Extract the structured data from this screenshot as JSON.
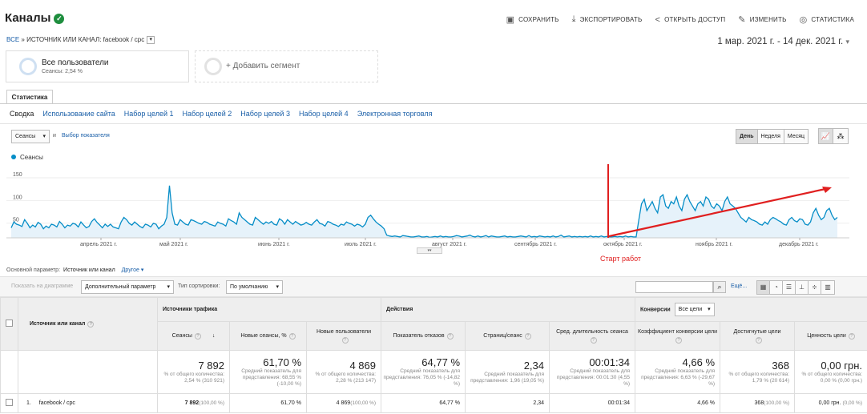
{
  "header": {
    "title": "Каналы",
    "actions": [
      "СОХРАНИТЬ",
      "ЭКСПОРТИРОВАТЬ",
      "ОТКРЫТЬ ДОСТУП",
      "ИЗМЕНИТЬ",
      "СТАТИСТИКА"
    ]
  },
  "breadcrumb": {
    "all": "ВСЕ",
    "sep": "»",
    "label": "ИСТОЧНИК ИЛИ КАНАЛ:",
    "value": "facebook / cpc"
  },
  "date_range": "1 мар. 2021 г. - 14 дек. 2021 г.",
  "segments": {
    "seg1_title": "Все пользователи",
    "seg1_sub": "Сеансы: 2,54 %",
    "seg2_title": "+ Добавить сегмент"
  },
  "tabs": {
    "main": "Статистика",
    "sub": [
      "Сводка",
      "Использование сайта",
      "Набор целей 1",
      "Набор целей 2",
      "Набор целей 3",
      "Набор целей 4",
      "Электронная торговля"
    ]
  },
  "chart_controls": {
    "metric": "Сеансы",
    "and": "и",
    "select_metric": "Выбор показателя",
    "periods": [
      "День",
      "Неделя",
      "Месяц"
    ]
  },
  "chart_data": {
    "type": "area",
    "series": [
      {
        "name": "Сеансы",
        "values": [
          22,
          35,
          30,
          28,
          25,
          40,
          32,
          22,
          28,
          24,
          34,
          30,
          20,
          26,
          22,
          30,
          28,
          24,
          36,
          30,
          22,
          28,
          26,
          32,
          30,
          24,
          35,
          28,
          22,
          25,
          36,
          42,
          34,
          28,
          22,
          30,
          25,
          30,
          24,
          22,
          20,
          35,
          45,
          40,
          32,
          28,
          35,
          30,
          25,
          22,
          30,
          28,
          24,
          32,
          30,
          20,
          26,
          30,
          45,
          115,
          55,
          30,
          28,
          40,
          35,
          30,
          28,
          40,
          38,
          35,
          32,
          30,
          36,
          34,
          30,
          28,
          26,
          35,
          32,
          30,
          26,
          42,
          38,
          35,
          30,
          55,
          45,
          40,
          35,
          30,
          28,
          45,
          40,
          35,
          30,
          35,
          32,
          36,
          30,
          28,
          42,
          38,
          30,
          40,
          35,
          30,
          36,
          32,
          28,
          30,
          34,
          30,
          28,
          35,
          40,
          32,
          30,
          26,
          36,
          34,
          30,
          28,
          25,
          30,
          28,
          35,
          32,
          30,
          26,
          30,
          28,
          24,
          30,
          45,
          50,
          42,
          35,
          30,
          26,
          20,
          6,
          4,
          3,
          4,
          3,
          2,
          5,
          4,
          3,
          2,
          2,
          3,
          4,
          2,
          2,
          3,
          1,
          2,
          3,
          2,
          4,
          2,
          3,
          2,
          2,
          3,
          5,
          4,
          2,
          3,
          4,
          6,
          3,
          2,
          4,
          2,
          3,
          5,
          2,
          4,
          3,
          2,
          2,
          3,
          4,
          2,
          3,
          2,
          2,
          3,
          4,
          3,
          2,
          5,
          2,
          3,
          2,
          4,
          3,
          2,
          3,
          2,
          4,
          2,
          3,
          6,
          2,
          3,
          4,
          2,
          3,
          2,
          3,
          2,
          3,
          2,
          4,
          2,
          3,
          2,
          4,
          2,
          3,
          2,
          2,
          3,
          2,
          3,
          2,
          4,
          2,
          3,
          2,
          2,
          40,
          75,
          85,
          60,
          70,
          80,
          65,
          55,
          90,
          95,
          70,
          65,
          80,
          75,
          90,
          70,
          60,
          85,
          95,
          80,
          70,
          60,
          75,
          80,
          70,
          90,
          85,
          70,
          65,
          75,
          70,
          60,
          80,
          90,
          75,
          70,
          65,
          55,
          45,
          40,
          35,
          45,
          40,
          38,
          35,
          30,
          28,
          35,
          30,
          40,
          45,
          42,
          38,
          35,
          30,
          28,
          40,
          45,
          38,
          35,
          42,
          40,
          30,
          28,
          35,
          55,
          65,
          50,
          40,
          45,
          60,
          65,
          50,
          40,
          45
        ]
      }
    ],
    "ylim": [
      0,
      150
    ],
    "y_ticks": [
      "150",
      "100",
      "50"
    ],
    "x_ticks": [
      "апрель 2021 г.",
      "май 2021 г.",
      "июнь 2021 г.",
      "июль 2021 г.",
      "август 2021 г.",
      "сентябрь 2021 г.",
      "октябрь 2021 г.",
      "ноябрь 2021 г.",
      "декабрь 2021 г."
    ],
    "annotation": "Старт работ"
  },
  "table_controls": {
    "primary_label": "Основной параметр:",
    "primary_value": "Источник или канал",
    "primary_other": "Другое",
    "plot_rows": "Показать на диаграмме",
    "secondary": "Дополнительный параметр",
    "sort_type": "Тип сортировки:",
    "sort_value": "По умолчанию",
    "more": "Ещё..."
  },
  "table": {
    "dim_header": "Источник или канал",
    "groups": [
      "Источники трафика",
      "Действия",
      "Конверсии"
    ],
    "conv_select": "Все цели",
    "columns": [
      "Сеансы",
      "Новые сеансы, %",
      "Новые пользователи",
      "Показатель отказов",
      "Страниц/сеанс",
      "Сред. длительность сеанса",
      "Коэффициент конверсии цели",
      "Достигнутые цели",
      "Ценность цели"
    ],
    "totals": [
      {
        "v": "7 892",
        "s": "% от общего количества: 2,54 % (310 921)"
      },
      {
        "v": "61,70 %",
        "s": "Средний показатель для представления: 68,55 % (-10,00 %)"
      },
      {
        "v": "4 869",
        "s": "% от общего количества: 2,28 % (213 147)"
      },
      {
        "v": "64,77 %",
        "s": "Средний показатель для представления: 76,05 % (-14,82 %)"
      },
      {
        "v": "2,34",
        "s": "Средний показатель для представления: 1,96 (19,05 %)"
      },
      {
        "v": "00:01:34",
        "s": "Средний показатель для представления: 00:01:30 (4,55 %)"
      },
      {
        "v": "4,66 %",
        "s": "Средний показатель для представления: 6,63 % (-29,67 %)"
      },
      {
        "v": "368",
        "s": "% от общего количества: 1,79 % (20 614)"
      },
      {
        "v": "0,00 грн.",
        "s": "% от общего количества: 0,00 % (0,00 грн.)"
      }
    ],
    "rows": [
      {
        "num": "1.",
        "name": "facebook / cpc",
        "sessions": "7 892",
        "sessions_pct": "(100,00 %)",
        "new_sessions": "61,70 %",
        "new_users": "4 869",
        "new_users_pct": "(100,00 %)",
        "bounce": "64,77 %",
        "pages": "2,34",
        "duration": "00:01:34",
        "conv_rate": "4,66 %",
        "goals": "368",
        "goals_pct": "(100,00 %)",
        "value": "0,00 грн.",
        "value_pct": "(0,00 %)"
      }
    ]
  }
}
